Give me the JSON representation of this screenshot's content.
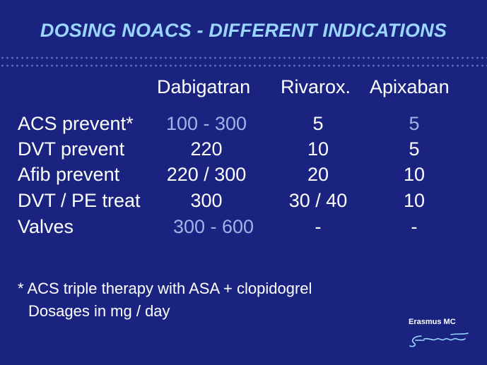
{
  "title": "DOSING NOACS - DIFFERENT INDICATIONS",
  "columns": [
    "Dabigatran",
    "Rivarox.",
    "Apixaban"
  ],
  "rows": [
    {
      "label": "ACS prevent*",
      "values": [
        "100 - 300",
        "5",
        "5"
      ]
    },
    {
      "label": "DVT prevent",
      "values": [
        "220",
        "10",
        "5"
      ]
    },
    {
      "label": "Afib prevent",
      "values": [
        "220 / 300",
        "20",
        "10"
      ]
    },
    {
      "label": "DVT / PE treat",
      "values": [
        "300",
        "30 / 40",
        "10"
      ]
    },
    {
      "label": "Valves",
      "values": [
        "300 - 600",
        "-",
        "-"
      ]
    }
  ],
  "footnotes": [
    "* ACS triple therapy with ASA + clopidogrel",
    "Dosages in mg / day"
  ],
  "logo": {
    "text": "Erasmus MC"
  },
  "colors": {
    "background": "#1a2480",
    "title": "#9ad6ff",
    "highlight": "#9fb3ea",
    "text": "#ffffff"
  }
}
